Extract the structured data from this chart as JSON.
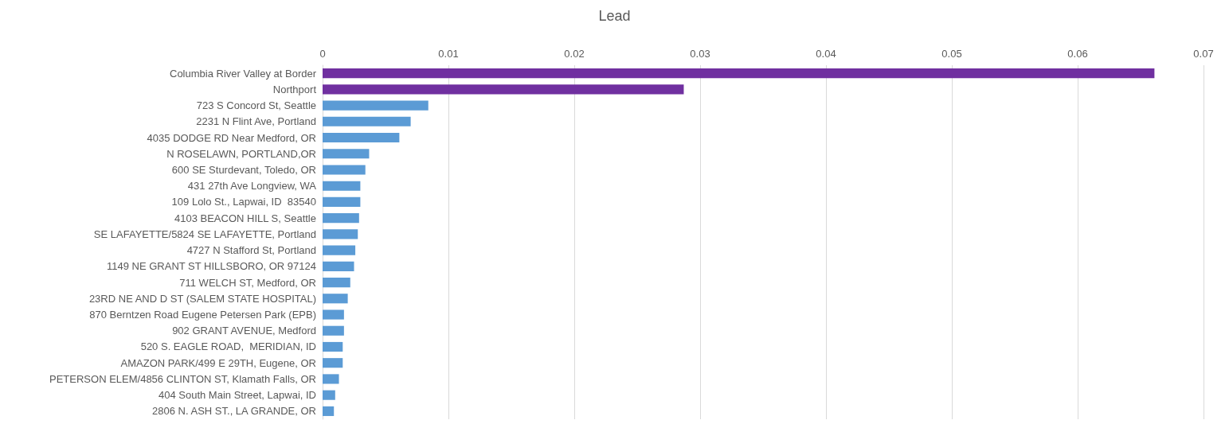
{
  "chart_data": {
    "type": "bar",
    "orientation": "horizontal",
    "title": "Lead",
    "categories": [
      "Columbia River Valley at Border",
      "Northport",
      "723 S Concord St, Seattle",
      "2231 N Flint Ave, Portland",
      "4035 DODGE RD Near Medford, OR",
      "N ROSELAWN, PORTLAND,OR",
      "600 SE Sturdevant, Toledo, OR",
      "431 27th Ave Longview, WA",
      "109 Lolo St., Lapwai, ID  83540",
      "4103 BEACON HILL S, Seattle",
      "SE LAFAYETTE/5824 SE LAFAYETTE, Portland",
      "4727 N Stafford St, Portland",
      "1149 NE GRANT ST HILLSBORO, OR 97124",
      "711 WELCH ST, Medford, OR",
      "23RD NE AND D ST (SALEM STATE HOSPITAL)",
      "870 Berntzen Road Eugene Petersen Park (EPB)",
      "902 GRANT AVENUE, Medford",
      "520 S. EAGLE ROAD,  MERIDIAN, ID",
      "AMAZON PARK/499 E 29TH, Eugene, OR",
      "PETERSON ELEM/4856 CLINTON ST, Klamath Falls, OR",
      "404 South Main Street, Lapwai, ID",
      "2806 N. ASH ST., LA GRANDE, OR"
    ],
    "values": [
      0.0661,
      0.0287,
      0.0084,
      0.007,
      0.0061,
      0.0037,
      0.0034,
      0.003,
      0.003,
      0.0029,
      0.0028,
      0.0026,
      0.0025,
      0.0022,
      0.002,
      0.0017,
      0.0017,
      0.0016,
      0.0016,
      0.0013,
      0.001,
      0.0009
    ],
    "colors": [
      "#7030a0",
      "#7030a0",
      "#5b9bd5",
      "#5b9bd5",
      "#5b9bd5",
      "#5b9bd5",
      "#5b9bd5",
      "#5b9bd5",
      "#5b9bd5",
      "#5b9bd5",
      "#5b9bd5",
      "#5b9bd5",
      "#5b9bd5",
      "#5b9bd5",
      "#5b9bd5",
      "#5b9bd5",
      "#5b9bd5",
      "#5b9bd5",
      "#5b9bd5",
      "#5b9bd5",
      "#5b9bd5",
      "#5b9bd5"
    ],
    "xlim": [
      0,
      0.07
    ],
    "xticks": [
      0,
      0.01,
      0.02,
      0.03,
      0.04,
      0.05,
      0.06,
      0.07
    ],
    "grid": "x"
  }
}
